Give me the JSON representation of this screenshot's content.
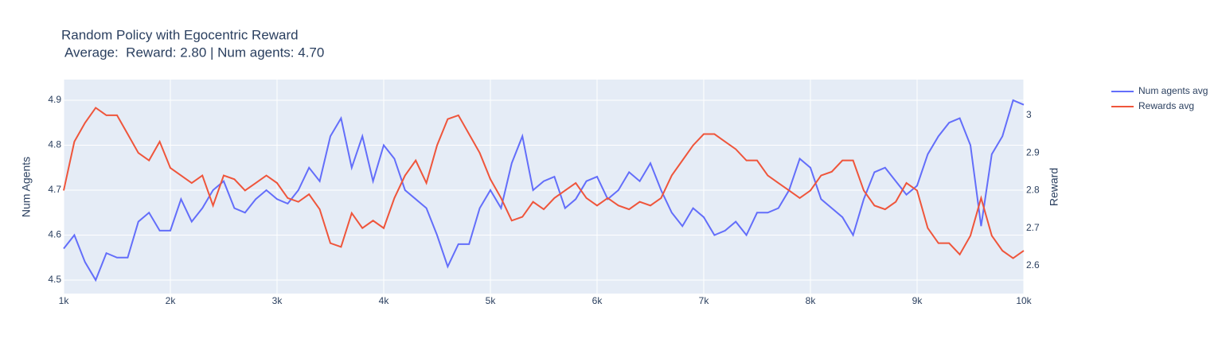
{
  "chart_data": {
    "type": "line",
    "title": "Random Policy with Egocentric Reward",
    "subtitle": "Average:  Reward: 2.80 | Num agents: 4.70",
    "y_label": "Num Agents",
    "y2_label": "Reward",
    "x": [
      1000,
      1100,
      1200,
      1300,
      1400,
      1500,
      1600,
      1700,
      1800,
      1900,
      2000,
      2100,
      2200,
      2300,
      2400,
      2500,
      2600,
      2700,
      2800,
      2900,
      3000,
      3100,
      3200,
      3300,
      3400,
      3500,
      3600,
      3700,
      3800,
      3900,
      4000,
      4100,
      4200,
      4300,
      4400,
      4500,
      4600,
      4700,
      4800,
      4900,
      5000,
      5100,
      5200,
      5300,
      5400,
      5500,
      5600,
      5700,
      5800,
      5900,
      6000,
      6100,
      6200,
      6300,
      6400,
      6500,
      6600,
      6700,
      6800,
      6900,
      7000,
      7100,
      7200,
      7300,
      7400,
      7500,
      7600,
      7700,
      7800,
      7900,
      8000,
      8100,
      8200,
      8300,
      8400,
      8500,
      8600,
      8700,
      8800,
      8900,
      9000,
      9100,
      9200,
      9300,
      9400,
      9500,
      9600,
      9700,
      9800,
      9900,
      10000
    ],
    "series": [
      {
        "name": "Num agents avg",
        "color": "#636efa",
        "axis": "y",
        "values": [
          4.57,
          4.6,
          4.54,
          4.5,
          4.56,
          4.55,
          4.55,
          4.63,
          4.65,
          4.61,
          4.61,
          4.68,
          4.63,
          4.66,
          4.7,
          4.72,
          4.66,
          4.65,
          4.68,
          4.7,
          4.68,
          4.67,
          4.7,
          4.75,
          4.72,
          4.82,
          4.86,
          4.75,
          4.82,
          4.72,
          4.8,
          4.77,
          4.7,
          4.68,
          4.66,
          4.6,
          4.53,
          4.58,
          4.58,
          4.66,
          4.7,
          4.66,
          4.76,
          4.82,
          4.7,
          4.72,
          4.73,
          4.66,
          4.68,
          4.72,
          4.73,
          4.68,
          4.7,
          4.74,
          4.72,
          4.76,
          4.7,
          4.65,
          4.62,
          4.66,
          4.64,
          4.6,
          4.61,
          4.63,
          4.6,
          4.65,
          4.65,
          4.66,
          4.7,
          4.77,
          4.75,
          4.68,
          4.66,
          4.64,
          4.6,
          4.68,
          4.74,
          4.75,
          4.72,
          4.69,
          4.71,
          4.78,
          4.82,
          4.85,
          4.86,
          4.8,
          4.62,
          4.78,
          4.82,
          4.9,
          4.89
        ]
      },
      {
        "name": "Rewards avg",
        "color": "#ef553b",
        "axis": "y2",
        "values": [
          2.8,
          2.93,
          2.98,
          3.02,
          3.0,
          3.0,
          2.95,
          2.9,
          2.88,
          2.93,
          2.86,
          2.84,
          2.82,
          2.84,
          2.76,
          2.84,
          2.83,
          2.8,
          2.82,
          2.84,
          2.82,
          2.78,
          2.77,
          2.79,
          2.75,
          2.66,
          2.65,
          2.74,
          2.7,
          2.72,
          2.7,
          2.78,
          2.84,
          2.88,
          2.82,
          2.92,
          2.99,
          3.0,
          2.95,
          2.9,
          2.83,
          2.78,
          2.72,
          2.73,
          2.77,
          2.75,
          2.78,
          2.8,
          2.82,
          2.78,
          2.76,
          2.78,
          2.76,
          2.75,
          2.77,
          2.76,
          2.78,
          2.84,
          2.88,
          2.92,
          2.95,
          2.95,
          2.93,
          2.91,
          2.88,
          2.88,
          2.84,
          2.82,
          2.8,
          2.78,
          2.8,
          2.84,
          2.85,
          2.88,
          2.88,
          2.8,
          2.76,
          2.75,
          2.77,
          2.82,
          2.8,
          2.7,
          2.66,
          2.66,
          2.63,
          2.68,
          2.78,
          2.68,
          2.64,
          2.62,
          2.64
        ]
      }
    ],
    "xlim": [
      1000,
      10000
    ],
    "xticks": [
      {
        "value": 1000,
        "label": "1k"
      },
      {
        "value": 2000,
        "label": "2k"
      },
      {
        "value": 3000,
        "label": "3k"
      },
      {
        "value": 4000,
        "label": "4k"
      },
      {
        "value": 5000,
        "label": "5k"
      },
      {
        "value": 6000,
        "label": "6k"
      },
      {
        "value": 7000,
        "label": "7k"
      },
      {
        "value": 8000,
        "label": "8k"
      },
      {
        "value": 9000,
        "label": "9k"
      },
      {
        "value": 10000,
        "label": "10k"
      }
    ],
    "ylim": [
      4.47,
      4.946
    ],
    "yticks": [
      4.5,
      4.6,
      4.7,
      4.8,
      4.9
    ],
    "y2lim": [
      2.526,
      3.095
    ],
    "y2ticks": [
      2.6,
      2.7,
      2.8,
      2.9,
      3
    ],
    "grid": true,
    "legend": "top-right"
  }
}
